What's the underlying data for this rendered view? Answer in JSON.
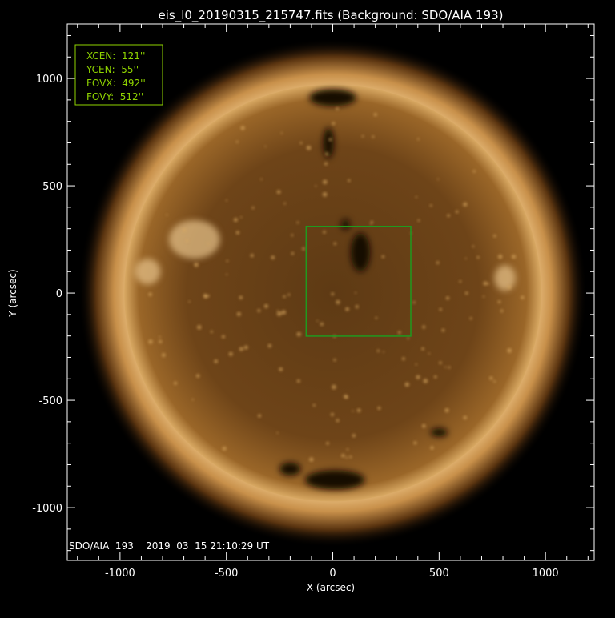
{
  "chart_data": {
    "type": "image",
    "title": "eis_l0_20190315_215747.fits  (Background: SDO/AIA 193)",
    "xlabel": "X (arcsec)",
    "ylabel": "Y (arcsec)",
    "xlim": [
      -1248,
      1229
    ],
    "ylim": [
      -1246,
      1254
    ],
    "xticks": [
      -1000,
      -500,
      0,
      500,
      1000
    ],
    "yticks": [
      -1000,
      -500,
      0,
      500,
      1000
    ],
    "minor_tick_step": 100,
    "solar_radius_arcsec": 980,
    "fov_box": {
      "xcen": 121,
      "ycen": 55,
      "fovx": 492,
      "fovy": 512,
      "color": "#1f9a1f"
    },
    "info_box": {
      "lines": [
        "XCEN:  121''",
        "YCEN:  55''",
        "FOVX:  492''",
        "FOVY:  512''"
      ],
      "color": "#8fd400"
    },
    "image_label": "SDO/AIA  193    2019  03  15 21:10:29 UT",
    "colors": {
      "axes": "#ffffff",
      "sun_core": "#6b4318",
      "sun_limb": "#e8b878"
    }
  }
}
